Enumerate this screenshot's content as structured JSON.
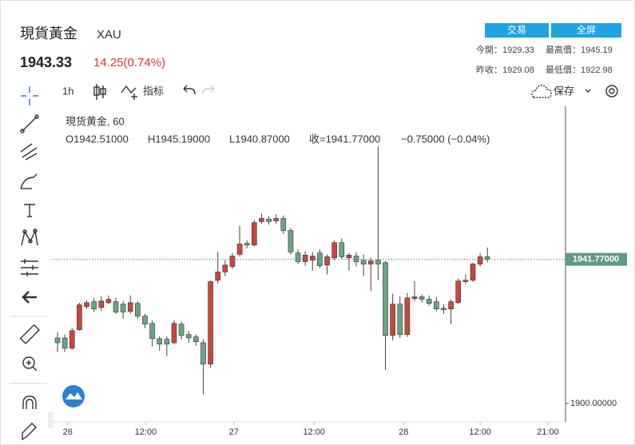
{
  "header": {
    "title": "現貨黃金",
    "symbol": "XAU",
    "price": "1943.33",
    "change": "14.25(0.74%)",
    "buttons": [
      "交易",
      "全屏"
    ],
    "stats": [
      "今開：1929.33",
      "最高價：1945.19",
      "昨收：1929.08",
      "最低價：1922.98"
    ]
  },
  "toolbar": {
    "interval": "1h",
    "indicators": "指标",
    "save": "保存"
  },
  "chart_data": {
    "type": "candlestick",
    "title": "現货黄金, 60",
    "legend": [
      "O1942.51000",
      "H1945.19000",
      "L1940.87000",
      "收=1941.77000",
      "−0.75000 (−0.04%)"
    ],
    "up_color": "#c9473f",
    "down_color": "#6aa585",
    "open": [
      1919.0,
      1919.0,
      1916.0,
      1921.4,
      1928.1,
      1929.5,
      1927.8,
      1929.2,
      1929.5,
      1928.8,
      1926.7,
      1929.0,
      1925.3,
      1923.2,
      1918.8,
      1918.6,
      1917.6,
      1923.0,
      1920.0,
      1919.3,
      1917.6,
      1911.4,
      1935.7,
      1938.1,
      1939.7,
      1943.2,
      1946.4,
      1945.9,
      1952.7,
      1953.4,
      1952.9,
      1953.6,
      1950.1,
      1943.6,
      1941.1,
      1941.5,
      1943.6,
      1940.1,
      1942.2,
      1946.6,
      1942.2,
      1942.7,
      1941.5,
      1940.4,
      1941.5,
      1940.8,
      1919.7,
      1928.8,
      1920.0,
      1930.4,
      1930.9,
      1930.2,
      1929.5,
      1927.6,
      1927.4,
      1929.2,
      1935.3,
      1935.7,
      1940.4,
      1942.51
    ],
    "high": [
      1920.7,
      1920.0,
      1921.8,
      1929.2,
      1929.9,
      1930.6,
      1931.1,
      1931.3,
      1930.6,
      1929.7,
      1931.3,
      1929.7,
      1926.0,
      1924.1,
      1919.5,
      1919.5,
      1924.1,
      1923.7,
      1921.1,
      1920.0,
      1918.6,
      1935.7,
      1943.9,
      1941.5,
      1943.6,
      1951.5,
      1947.3,
      1953.1,
      1955.0,
      1954.3,
      1954.8,
      1954.5,
      1950.8,
      1944.6,
      1944.1,
      1943.9,
      1944.6,
      1943.2,
      1947.3,
      1947.8,
      1943.6,
      1943.9,
      1943.2,
      1942.2,
      1974.5,
      1941.3,
      1931.8,
      1931.1,
      1932.0,
      1935.5,
      1931.6,
      1931.3,
      1930.9,
      1928.8,
      1930.2,
      1936.2,
      1937.4,
      1940.8,
      1943.6,
      1945.19
    ],
    "low": [
      1914.9,
      1914.9,
      1915.6,
      1921.1,
      1927.4,
      1926.5,
      1926.9,
      1928.8,
      1926.0,
      1924.6,
      1926.0,
      1924.6,
      1921.8,
      1916.5,
      1915.3,
      1913.7,
      1917.2,
      1918.6,
      1917.6,
      1916.7,
      1902.6,
      1910.4,
      1934.8,
      1936.9,
      1939.0,
      1942.5,
      1945.0,
      1945.5,
      1952.0,
      1951.8,
      1952.0,
      1949.2,
      1943.2,
      1940.4,
      1939.9,
      1938.5,
      1939.2,
      1937.4,
      1941.5,
      1941.8,
      1938.5,
      1939.7,
      1936.9,
      1932.5,
      1935.7,
      1909.7,
      1918.3,
      1919.0,
      1919.3,
      1929.7,
      1929.2,
      1928.3,
      1926.7,
      1926.0,
      1923.0,
      1928.8,
      1934.6,
      1935.3,
      1939.7,
      1940.87
    ],
    "close": [
      1917.6,
      1916.0,
      1921.1,
      1928.6,
      1929.2,
      1927.4,
      1929.7,
      1930.2,
      1926.5,
      1926.5,
      1929.2,
      1925.3,
      1923.0,
      1918.8,
      1917.2,
      1917.2,
      1923.2,
      1919.7,
      1919.0,
      1917.9,
      1911.4,
      1935.3,
      1938.1,
      1940.1,
      1942.7,
      1946.2,
      1945.9,
      1952.4,
      1953.6,
      1952.7,
      1953.6,
      1950.1,
      1943.9,
      1941.1,
      1943.0,
      1942.7,
      1939.9,
      1942.5,
      1946.6,
      1942.5,
      1943.0,
      1941.1,
      1940.4,
      1941.3,
      1940.4,
      1919.7,
      1928.8,
      1920.0,
      1930.6,
      1930.9,
      1930.2,
      1929.0,
      1927.4,
      1927.2,
      1929.5,
      1935.5,
      1935.7,
      1940.4,
      1942.5,
      1941.77
    ],
    "xlim": [
      -0.66,
      69.5
    ],
    "xticks": [
      {
        "value": 1.4,
        "label": "26"
      },
      {
        "value": 12.1,
        "label": "12:00"
      },
      {
        "value": 24.2,
        "label": "27"
      },
      {
        "value": 35.2,
        "label": "12:00"
      },
      {
        "value": 47.5,
        "label": "28"
      },
      {
        "value": 58.0,
        "label": "12:00"
      },
      {
        "value": 67.3,
        "label": "21:00"
      }
    ],
    "ylim": [
      1894.7,
      1986.1
    ],
    "yticks": [
      {
        "value": 1900,
        "label": "1900.00000"
      }
    ],
    "last_price": {
      "value": 1941.77,
      "label": "1941.77000"
    }
  }
}
